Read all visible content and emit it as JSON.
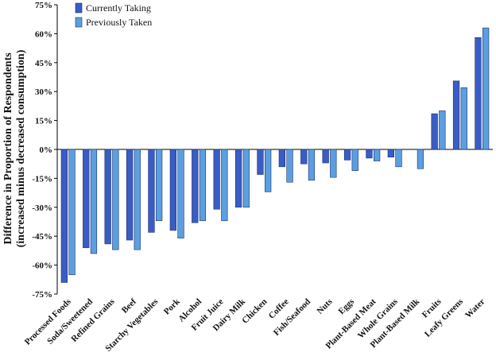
{
  "chart_data": {
    "type": "bar",
    "y_label": [
      "Difference in Proportion of Respondents",
      "(increased minus decreased consumption)"
    ],
    "categories": [
      "Processed Foods",
      "Soda/Sweetened",
      "Refined Grains",
      "Beef",
      "Starchy Vegetables",
      "Pork",
      "Alcohol",
      "Fruit Juice",
      "Dairy Milk",
      "Chicken",
      "Coffee",
      "Fish/Seafood",
      "Nuts",
      "Eggs",
      "Plant-Based Meat",
      "Whole Grains",
      "Plant-Based Milk",
      "Fruits",
      "Leafy Greens",
      "Water"
    ],
    "series": [
      {
        "name": "Currently Taking",
        "color": "#3a5cc5",
        "values": [
          -69,
          -51,
          -49,
          -47,
          -43,
          -42,
          -38,
          -31,
          -30,
          -13,
          -9,
          -7.5,
          -7,
          -5.5,
          -4.5,
          -4,
          null,
          18.5,
          35.5,
          58
        ]
      },
      {
        "name": "Previously Taken",
        "color": "#5b9fe0",
        "values": [
          -65,
          -54,
          -52,
          -52,
          -37,
          -46,
          -37,
          -37,
          -30,
          -22,
          -17,
          -16,
          -14.5,
          -11,
          -6,
          -9,
          -10,
          20,
          32,
          63
        ]
      }
    ],
    "ylim": [
      -75,
      75
    ],
    "yticks": [
      {
        "value": -75,
        "label": "-75%"
      },
      {
        "value": -60,
        "label": "-60%"
      },
      {
        "value": -45,
        "label": "-45%"
      },
      {
        "value": -30,
        "label": "-30%"
      },
      {
        "value": -15,
        "label": "-15%"
      },
      {
        "value": 0,
        "label": "0%"
      },
      {
        "value": 15,
        "label": "15%"
      },
      {
        "value": 30,
        "label": "30%"
      },
      {
        "value": 45,
        "label": "45%"
      },
      {
        "value": 60,
        "label": "60%"
      },
      {
        "value": 75,
        "label": "75%"
      }
    ],
    "legend": "top-left"
  }
}
